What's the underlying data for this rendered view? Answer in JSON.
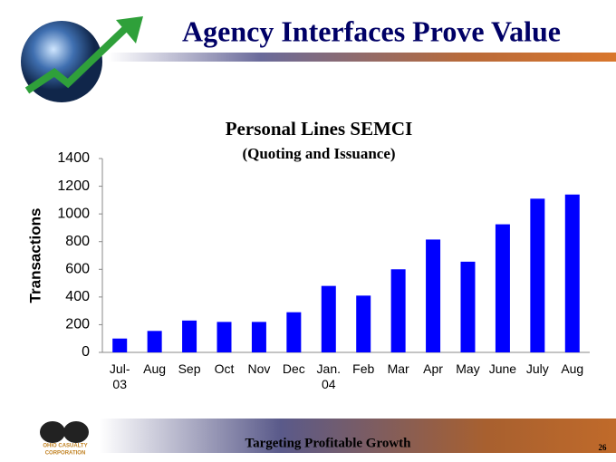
{
  "header": {
    "title": "Agency Interfaces Prove Value"
  },
  "chart_data": {
    "type": "bar",
    "title": "Personal Lines SEMCI",
    "subtitle": "(Quoting and Issuance)",
    "y_label": "Transactions",
    "categories": [
      "Jul-\n03",
      "Aug",
      "Sep",
      "Oct",
      "Nov",
      "Dec",
      "Jan.\n04",
      "Feb",
      "Mar",
      "Apr",
      "May",
      "June",
      "July",
      "Aug"
    ],
    "values": [
      100,
      155,
      230,
      220,
      220,
      290,
      480,
      410,
      600,
      815,
      655,
      925,
      1110,
      1140
    ],
    "color": "#0000ff",
    "ylim": [
      0,
      1400
    ],
    "yticks": [
      0,
      200,
      400,
      600,
      800,
      1000,
      1200,
      1400
    ],
    "grid": false
  },
  "footer": {
    "text": "Targeting Profitable Growth",
    "page": "26",
    "logo": [
      "OHIO CASUALTY",
      "CORPORATION"
    ]
  }
}
